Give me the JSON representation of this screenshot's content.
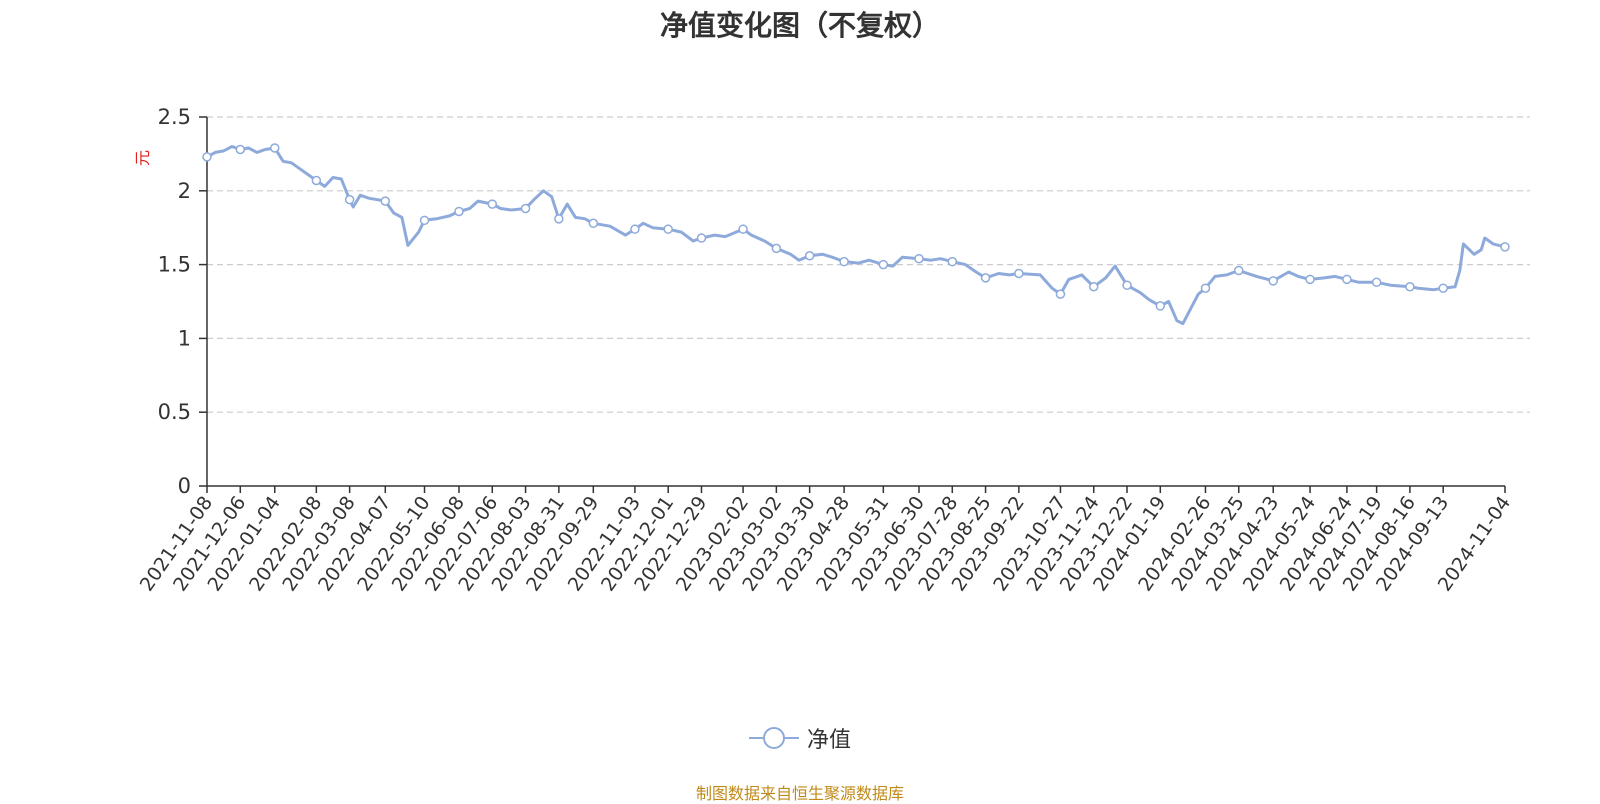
{
  "title": "净值变化图（不复权）",
  "source": "制图数据来自恒生聚源数据库",
  "colors": {
    "series": "#8eaadb",
    "unit": "#e0211a",
    "source": "#c08a1a",
    "grid": "#cccccc",
    "axis": "#333333"
  },
  "chart_data": {
    "type": "line",
    "ylabel": "元",
    "ylim": [
      0,
      2.5
    ],
    "yticks": [
      0,
      0.5,
      1,
      1.5,
      2,
      2.5
    ],
    "ytick_labels": [
      "0",
      "0.5",
      "1",
      "1.5",
      "2",
      "2.5"
    ],
    "grid": true,
    "legend_position": "bottom-center",
    "xtick_labels": [
      "2021-11-08",
      "2021-12-06",
      "2022-01-04",
      "2022-02-08",
      "2022-03-08",
      "2022-04-07",
      "2022-05-10",
      "2022-06-08",
      "2022-07-06",
      "2022-08-03",
      "2022-08-31",
      "2022-09-29",
      "2022-11-03",
      "2022-12-01",
      "2022-12-29",
      "2023-02-02",
      "2023-03-02",
      "2023-03-30",
      "2023-04-28",
      "2023-05-31",
      "2023-06-30",
      "2023-07-28",
      "2023-08-25",
      "2023-09-22",
      "2023-10-27",
      "2023-11-24",
      "2023-12-22",
      "2024-01-19",
      "2024-02-26",
      "2024-03-25",
      "2024-04-23",
      "2024-05-24",
      "2024-06-24",
      "2024-07-19",
      "2024-08-16",
      "2024-09-13",
      "2024-11-04"
    ],
    "series": [
      {
        "name": "净值",
        "points": [
          [
            "2021-11-08",
            2.23
          ],
          [
            "2021-11-15",
            2.26
          ],
          [
            "2021-11-22",
            2.27
          ],
          [
            "2021-11-29",
            2.3
          ],
          [
            "2021-12-06",
            2.28
          ],
          [
            "2021-12-13",
            2.29
          ],
          [
            "2021-12-20",
            2.26
          ],
          [
            "2021-12-27",
            2.28
          ],
          [
            "2022-01-04",
            2.29
          ],
          [
            "2022-01-11",
            2.2
          ],
          [
            "2022-01-18",
            2.19
          ],
          [
            "2022-01-25",
            2.15
          ],
          [
            "2022-02-08",
            2.07
          ],
          [
            "2022-02-15",
            2.03
          ],
          [
            "2022-02-22",
            2.09
          ],
          [
            "2022-03-01",
            2.08
          ],
          [
            "2022-03-08",
            1.94
          ],
          [
            "2022-03-11",
            1.89
          ],
          [
            "2022-03-17",
            1.97
          ],
          [
            "2022-03-24",
            1.95
          ],
          [
            "2022-04-07",
            1.93
          ],
          [
            "2022-04-14",
            1.85
          ],
          [
            "2022-04-21",
            1.82
          ],
          [
            "2022-04-26",
            1.63
          ],
          [
            "2022-05-05",
            1.72
          ],
          [
            "2022-05-10",
            1.8
          ],
          [
            "2022-05-20",
            1.81
          ],
          [
            "2022-05-31",
            1.83
          ],
          [
            "2022-06-08",
            1.86
          ],
          [
            "2022-06-17",
            1.88
          ],
          [
            "2022-06-24",
            1.93
          ],
          [
            "2022-07-06",
            1.91
          ],
          [
            "2022-07-13",
            1.88
          ],
          [
            "2022-07-22",
            1.87
          ],
          [
            "2022-08-03",
            1.88
          ],
          [
            "2022-08-10",
            1.94
          ],
          [
            "2022-08-18",
            2.0
          ],
          [
            "2022-08-25",
            1.96
          ],
          [
            "2022-08-31",
            1.81
          ],
          [
            "2022-09-07",
            1.91
          ],
          [
            "2022-09-14",
            1.82
          ],
          [
            "2022-09-22",
            1.81
          ],
          [
            "2022-09-29",
            1.78
          ],
          [
            "2022-10-13",
            1.76
          ],
          [
            "2022-10-26",
            1.7
          ],
          [
            "2022-11-03",
            1.74
          ],
          [
            "2022-11-10",
            1.78
          ],
          [
            "2022-11-18",
            1.75
          ],
          [
            "2022-12-01",
            1.74
          ],
          [
            "2022-12-12",
            1.72
          ],
          [
            "2022-12-22",
            1.66
          ],
          [
            "2022-12-29",
            1.68
          ],
          [
            "2023-01-09",
            1.7
          ],
          [
            "2023-01-18",
            1.69
          ],
          [
            "2023-02-02",
            1.74
          ],
          [
            "2023-02-09",
            1.7
          ],
          [
            "2023-02-20",
            1.66
          ],
          [
            "2023-03-02",
            1.61
          ],
          [
            "2023-03-14",
            1.57
          ],
          [
            "2023-03-21",
            1.53
          ],
          [
            "2023-03-30",
            1.56
          ],
          [
            "2023-04-10",
            1.57
          ],
          [
            "2023-04-18",
            1.55
          ],
          [
            "2023-04-28",
            1.52
          ],
          [
            "2023-05-10",
            1.51
          ],
          [
            "2023-05-19",
            1.53
          ],
          [
            "2023-05-31",
            1.5
          ],
          [
            "2023-06-08",
            1.49
          ],
          [
            "2023-06-16",
            1.55
          ],
          [
            "2023-06-30",
            1.54
          ],
          [
            "2023-07-10",
            1.53
          ],
          [
            "2023-07-18",
            1.54
          ],
          [
            "2023-07-28",
            1.52
          ],
          [
            "2023-08-08",
            1.5
          ],
          [
            "2023-08-17",
            1.45
          ],
          [
            "2023-08-25",
            1.41
          ],
          [
            "2023-09-05",
            1.44
          ],
          [
            "2023-09-14",
            1.43
          ],
          [
            "2023-09-22",
            1.44
          ],
          [
            "2023-10-10",
            1.43
          ],
          [
            "2023-10-20",
            1.34
          ],
          [
            "2023-10-27",
            1.3
          ],
          [
            "2023-11-03",
            1.4
          ],
          [
            "2023-11-14",
            1.43
          ],
          [
            "2023-11-24",
            1.35
          ],
          [
            "2023-12-04",
            1.41
          ],
          [
            "2023-12-12",
            1.49
          ],
          [
            "2023-12-22",
            1.36
          ],
          [
            "2024-01-02",
            1.31
          ],
          [
            "2024-01-10",
            1.26
          ],
          [
            "2024-01-19",
            1.22
          ],
          [
            "2024-01-26",
            1.25
          ],
          [
            "2024-02-02",
            1.12
          ],
          [
            "2024-02-07",
            1.1
          ],
          [
            "2024-02-20",
            1.3
          ],
          [
            "2024-02-26",
            1.34
          ],
          [
            "2024-03-05",
            1.42
          ],
          [
            "2024-03-15",
            1.43
          ],
          [
            "2024-03-25",
            1.46
          ],
          [
            "2024-04-09",
            1.42
          ],
          [
            "2024-04-23",
            1.39
          ],
          [
            "2024-05-06",
            1.45
          ],
          [
            "2024-05-14",
            1.42
          ],
          [
            "2024-05-24",
            1.4
          ],
          [
            "2024-06-05",
            1.41
          ],
          [
            "2024-06-14",
            1.42
          ],
          [
            "2024-06-24",
            1.4
          ],
          [
            "2024-07-04",
            1.38
          ],
          [
            "2024-07-19",
            1.38
          ],
          [
            "2024-07-31",
            1.36
          ],
          [
            "2024-08-16",
            1.35
          ],
          [
            "2024-08-23",
            1.34
          ],
          [
            "2024-09-05",
            1.33
          ],
          [
            "2024-09-13",
            1.34
          ],
          [
            "2024-09-23",
            1.35
          ],
          [
            "2024-09-27",
            1.46
          ],
          [
            "2024-09-30",
            1.64
          ],
          [
            "2024-10-09",
            1.57
          ],
          [
            "2024-10-15",
            1.6
          ],
          [
            "2024-10-18",
            1.68
          ],
          [
            "2024-10-25",
            1.64
          ],
          [
            "2024-11-04",
            1.62
          ]
        ]
      }
    ]
  },
  "legend": {
    "label": "净值"
  }
}
